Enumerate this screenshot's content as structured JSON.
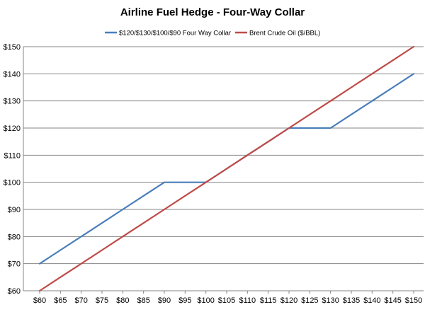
{
  "chart_data": {
    "type": "line",
    "title": "Airline Fuel Hedge - Four-Way Collar",
    "xlabel": "",
    "ylabel": "",
    "x": [
      60,
      65,
      70,
      75,
      80,
      85,
      90,
      95,
      100,
      105,
      110,
      115,
      120,
      125,
      130,
      135,
      140,
      145,
      150
    ],
    "x_tick_labels": [
      "$60",
      "$65",
      "$70",
      "$75",
      "$80",
      "$85",
      "$90",
      "$95",
      "$100",
      "$105",
      "$110",
      "$115",
      "$120",
      "$125",
      "$130",
      "$135",
      "$140",
      "$145",
      "$150"
    ],
    "y_tick_labels": [
      "$60",
      "$70",
      "$80",
      "$90",
      "$100",
      "$110",
      "$120",
      "$130",
      "$140",
      "$150"
    ],
    "ylim": [
      60,
      150
    ],
    "grid": "horizontal",
    "legend_position": "top",
    "series": [
      {
        "name": "$120/$130/$100/$90 Four Way Collar",
        "color": "#4a7ebb",
        "values": [
          70,
          75,
          80,
          85,
          90,
          95,
          100,
          100,
          100,
          105,
          110,
          115,
          120,
          120,
          120,
          125,
          130,
          135,
          140
        ]
      },
      {
        "name": "Brent Crude Oil ($/BBL)",
        "color": "#be4b48",
        "values": [
          60,
          65,
          70,
          75,
          80,
          85,
          90,
          95,
          100,
          105,
          110,
          115,
          120,
          125,
          130,
          135,
          140,
          145,
          150
        ]
      }
    ]
  }
}
